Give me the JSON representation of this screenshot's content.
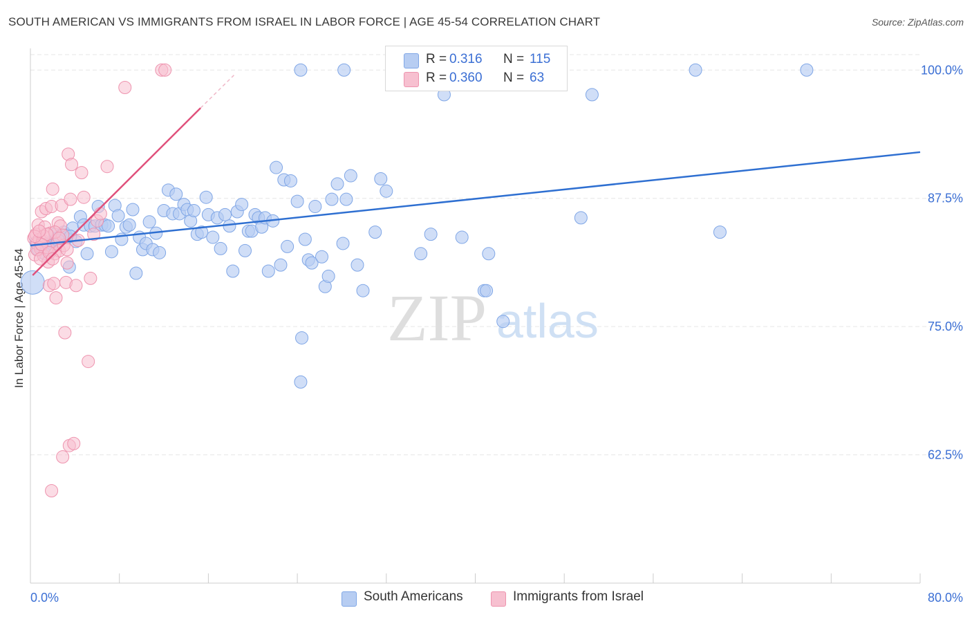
{
  "title": "SOUTH AMERICAN VS IMMIGRANTS FROM ISRAEL IN LABOR FORCE | AGE 45-54 CORRELATION CHART",
  "source": "Source: ZipAtlas.com",
  "watermark": {
    "zip": "ZIP",
    "atlas": "atlas"
  },
  "legend_top": {
    "rows": [
      {
        "r_label": "R =",
        "r_value": "0.316",
        "n_label": "N =",
        "n_value": "115"
      },
      {
        "r_label": "R =",
        "r_value": "0.360",
        "n_label": "N =",
        "n_value": "63"
      }
    ]
  },
  "legend_bottom": {
    "items": [
      {
        "label": "South Americans"
      },
      {
        "label": "Immigrants from Israel"
      }
    ]
  },
  "colors": {
    "blue_fill": "#b7cdf2",
    "blue_stroke": "#7fa6e6",
    "blue_line": "#2e6fd1",
    "pink_fill": "#f7c0d0",
    "pink_stroke": "#ee93ae",
    "pink_line": "#e0507b",
    "tick_label": "#3b6fd4",
    "grid": "#e6e6e6"
  },
  "chart_data": {
    "type": "scatter",
    "title": "SOUTH AMERICAN VS IMMIGRANTS FROM ISRAEL IN LABOR FORCE | AGE 45-54 CORRELATION CHART",
    "xlabel": "",
    "ylabel": "In Labor Force | Age 45-54",
    "xlim": [
      0,
      80
    ],
    "ylim": [
      50,
      101.5
    ],
    "x_tick_labels": [
      "0.0%",
      "80.0%"
    ],
    "y_ticks": [
      62.5,
      75.0,
      87.5,
      100.0
    ],
    "y_tick_labels": [
      "62.5%",
      "75.0%",
      "87.5%",
      "100.0%"
    ],
    "grid": true,
    "series": [
      {
        "name": "South Americans",
        "R": 0.316,
        "N": 115,
        "trend": {
          "x": [
            0.0,
            80.0
          ],
          "y": [
            82.9,
            92.0
          ]
        },
        "points": [
          [
            0.2,
            79.3
          ],
          [
            0.5,
            83.2
          ],
          [
            0.7,
            82.5
          ],
          [
            0.9,
            82.8
          ],
          [
            1.1,
            83.0
          ],
          [
            1.4,
            82.9
          ],
          [
            1.6,
            83.1
          ],
          [
            1.8,
            82.7
          ],
          [
            2.0,
            83.3
          ],
          [
            2.2,
            84.0
          ],
          [
            2.4,
            83.6
          ],
          [
            2.7,
            83.8
          ],
          [
            3.0,
            84.2
          ],
          [
            3.2,
            83.9
          ],
          [
            3.5,
            80.8
          ],
          [
            3.8,
            84.6
          ],
          [
            4.1,
            83.3
          ],
          [
            4.5,
            85.7
          ],
          [
            4.8,
            84.9
          ],
          [
            5.1,
            82.1
          ],
          [
            5.4,
            84.8
          ],
          [
            5.8,
            84.8
          ],
          [
            6.1,
            86.7
          ],
          [
            6.4,
            84.9
          ],
          [
            6.7,
            84.9
          ],
          [
            7.0,
            84.8
          ],
          [
            7.3,
            82.3
          ],
          [
            7.6,
            86.8
          ],
          [
            7.9,
            85.8
          ],
          [
            8.2,
            83.5
          ],
          [
            8.6,
            84.7
          ],
          [
            8.9,
            84.9
          ],
          [
            9.2,
            86.4
          ],
          [
            9.5,
            80.2
          ],
          [
            9.8,
            83.7
          ],
          [
            10.1,
            82.5
          ],
          [
            10.4,
            83.1
          ],
          [
            10.7,
            85.2
          ],
          [
            11.0,
            82.5
          ],
          [
            11.3,
            84.1
          ],
          [
            11.6,
            82.2
          ],
          [
            12.0,
            86.3
          ],
          [
            12.4,
            88.3
          ],
          [
            12.8,
            86.0
          ],
          [
            13.1,
            87.9
          ],
          [
            13.4,
            86.0
          ],
          [
            13.8,
            86.9
          ],
          [
            14.1,
            86.4
          ],
          [
            14.4,
            85.3
          ],
          [
            14.7,
            86.3
          ],
          [
            15.0,
            84.0
          ],
          [
            15.4,
            84.2
          ],
          [
            15.8,
            87.6
          ],
          [
            16.0,
            85.9
          ],
          [
            16.4,
            83.7
          ],
          [
            16.8,
            85.6
          ],
          [
            17.1,
            82.6
          ],
          [
            17.5,
            85.9
          ],
          [
            17.9,
            84.8
          ],
          [
            18.2,
            80.4
          ],
          [
            18.6,
            86.2
          ],
          [
            19.0,
            86.9
          ],
          [
            19.3,
            82.4
          ],
          [
            19.6,
            84.3
          ],
          [
            19.9,
            84.3
          ],
          [
            20.2,
            85.9
          ],
          [
            20.5,
            85.6
          ],
          [
            20.8,
            84.7
          ],
          [
            21.1,
            85.6
          ],
          [
            21.4,
            80.4
          ],
          [
            21.8,
            85.3
          ],
          [
            22.1,
            90.5
          ],
          [
            22.5,
            81.0
          ],
          [
            22.8,
            89.3
          ],
          [
            23.1,
            82.8
          ],
          [
            23.4,
            89.2
          ],
          [
            24.0,
            87.2
          ],
          [
            24.4,
            73.9
          ],
          [
            24.7,
            83.5
          ],
          [
            25.0,
            81.5
          ],
          [
            25.3,
            81.2
          ],
          [
            25.6,
            86.7
          ],
          [
            26.2,
            81.8
          ],
          [
            26.5,
            78.9
          ],
          [
            26.8,
            79.9
          ],
          [
            27.1,
            87.4
          ],
          [
            27.6,
            88.9
          ],
          [
            28.1,
            83.1
          ],
          [
            28.4,
            87.4
          ],
          [
            28.8,
            89.7
          ],
          [
            29.4,
            81.0
          ],
          [
            29.9,
            78.5
          ],
          [
            31.0,
            84.2
          ],
          [
            31.5,
            89.4
          ],
          [
            32.0,
            88.2
          ],
          [
            33.2,
            100.0
          ],
          [
            35.1,
            82.1
          ],
          [
            36.0,
            84.0
          ],
          [
            37.2,
            97.6
          ],
          [
            38.8,
            83.7
          ],
          [
            40.8,
            78.5
          ],
          [
            41.0,
            78.5
          ],
          [
            41.2,
            82.1
          ],
          [
            42.5,
            75.5
          ],
          [
            24.3,
            100.0
          ],
          [
            28.2,
            100.0
          ],
          [
            49.5,
            85.6
          ],
          [
            50.5,
            97.6
          ],
          [
            62.0,
            84.2
          ],
          [
            59.8,
            100.0
          ],
          [
            69.8,
            100.0
          ],
          [
            24.3,
            69.6
          ],
          [
            1.3,
            82.1
          ],
          [
            2.5,
            83.4
          ],
          [
            3.6,
            83.8
          ]
        ]
      },
      {
        "name": "Immigrants from Israel",
        "R": 0.36,
        "N": 63,
        "trend": {
          "x": [
            0.2,
            15.3
          ],
          "y": [
            80.0,
            96.3
          ],
          "dashed_to": {
            "x": 18.3,
            "y": 99.5
          }
        },
        "points": [
          [
            0.3,
            83.6
          ],
          [
            0.4,
            82.0
          ],
          [
            0.5,
            84.0
          ],
          [
            0.6,
            83.1
          ],
          [
            0.7,
            84.9
          ],
          [
            0.8,
            83.5
          ],
          [
            0.9,
            82.6
          ],
          [
            1.0,
            86.2
          ],
          [
            1.1,
            83.4
          ],
          [
            1.2,
            81.9
          ],
          [
            1.3,
            84.7
          ],
          [
            1.4,
            86.5
          ],
          [
            1.5,
            82.7
          ],
          [
            1.6,
            81.3
          ],
          [
            1.7,
            79.0
          ],
          [
            1.8,
            84.1
          ],
          [
            1.9,
            86.7
          ],
          [
            2.0,
            88.4
          ],
          [
            2.1,
            79.2
          ],
          [
            2.2,
            82.1
          ],
          [
            2.3,
            77.8
          ],
          [
            2.4,
            83.1
          ],
          [
            2.5,
            85.1
          ],
          [
            2.6,
            82.4
          ],
          [
            2.7,
            84.8
          ],
          [
            2.8,
            86.8
          ],
          [
            2.9,
            83.9
          ],
          [
            3.0,
            82.9
          ],
          [
            3.1,
            74.4
          ],
          [
            3.2,
            79.3
          ],
          [
            3.3,
            81.2
          ],
          [
            3.4,
            91.8
          ],
          [
            3.5,
            63.4
          ],
          [
            3.6,
            87.4
          ],
          [
            3.7,
            90.8
          ],
          [
            3.9,
            63.6
          ],
          [
            4.1,
            79.0
          ],
          [
            4.3,
            83.4
          ],
          [
            4.6,
            90.0
          ],
          [
            4.8,
            87.6
          ],
          [
            5.2,
            71.6
          ],
          [
            5.4,
            79.7
          ],
          [
            5.7,
            84.0
          ],
          [
            6.0,
            85.3
          ],
          [
            6.3,
            86.0
          ],
          [
            6.9,
            90.6
          ],
          [
            8.5,
            98.3
          ],
          [
            11.8,
            100.0
          ],
          [
            12.1,
            100.0
          ],
          [
            1.9,
            59.0
          ],
          [
            2.9,
            62.3
          ],
          [
            0.6,
            82.5
          ],
          [
            1.2,
            83.8
          ],
          [
            2.2,
            84.2
          ],
          [
            0.9,
            81.6
          ],
          [
            1.5,
            84.0
          ],
          [
            2.6,
            83.6
          ],
          [
            3.3,
            82.5
          ],
          [
            1.0,
            83.0
          ],
          [
            0.4,
            83.8
          ],
          [
            1.7,
            82.2
          ],
          [
            2.0,
            81.6
          ],
          [
            0.8,
            84.3
          ]
        ]
      }
    ]
  }
}
